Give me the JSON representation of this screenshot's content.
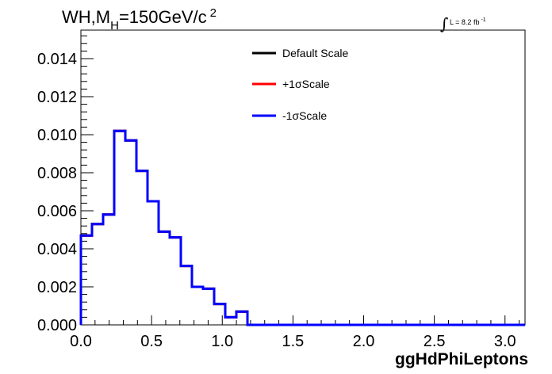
{
  "chart_data": {
    "type": "line",
    "style": "step-histogram",
    "title": {
      "main": "WH,M",
      "sub": "H",
      "rest": "=150GeV/c",
      "sup": "2"
    },
    "lumi": {
      "integral": "∫",
      "text": "L = 8.2 fb",
      "sup": "-1"
    },
    "xlabel": "ggHdPhiLeptons",
    "ylabel": "",
    "xlim": [
      0,
      3.1416
    ],
    "ylim": [
      0,
      0.0155
    ],
    "xticks": [
      0.0,
      0.5,
      1.0,
      1.5,
      2.0,
      2.5,
      3.0
    ],
    "xtick_labels": [
      "0.0",
      "0.5",
      "1.0",
      "1.5",
      "2.0",
      "2.5",
      "3.0"
    ],
    "yticks": [
      0.0,
      0.002,
      0.004,
      0.006,
      0.008,
      0.01,
      0.012,
      0.014
    ],
    "ytick_labels": [
      "0.000",
      "0.002",
      "0.004",
      "0.006",
      "0.008",
      "0.010",
      "0.012",
      "0.014"
    ],
    "grid": false,
    "legend_position": "top-center",
    "bin_edges": [
      0.0,
      0.0785,
      0.1571,
      0.2356,
      0.3142,
      0.3927,
      0.4712,
      0.5498,
      0.6283,
      0.7069,
      0.7854,
      0.8639,
      0.9425,
      1.021,
      1.0996,
      1.1781,
      1.2566,
      1.3352,
      1.4137,
      1.4923,
      1.5708,
      1.6493,
      1.7279,
      1.8064,
      1.885,
      1.9635,
      2.042,
      2.1206,
      2.1991,
      2.2777,
      2.3562,
      2.4347,
      2.5133,
      2.5918,
      2.6704,
      2.7489,
      2.8274,
      2.906,
      2.9845,
      3.0631,
      3.1416
    ],
    "series": [
      {
        "name": "Default Scale",
        "color": "#000000",
        "values": [
          0.0047,
          0.0053,
          0.0058,
          0.0102,
          0.0097,
          0.0081,
          0.0065,
          0.0049,
          0.0046,
          0.0031,
          0.002,
          0.0019,
          0.0011,
          0.0004,
          0.0007,
          0.0,
          0.0,
          0.0,
          0.0,
          0.0,
          0.0,
          0.0,
          0.0,
          0.0,
          0.0,
          0.0,
          0.0,
          0.0,
          0.0,
          0.0,
          0.0,
          0.0,
          0.0,
          0.0,
          0.0,
          0.0,
          0.0,
          0.0,
          0.0,
          0.0
        ]
      },
      {
        "name": "+1σScale",
        "color": "#ff0000",
        "values": [
          0.0047,
          0.0053,
          0.0058,
          0.0102,
          0.0097,
          0.0081,
          0.0065,
          0.0049,
          0.0046,
          0.0031,
          0.002,
          0.0019,
          0.0011,
          0.0004,
          0.0007,
          0.0,
          0.0,
          0.0,
          0.0,
          0.0,
          0.0,
          0.0,
          0.0,
          0.0,
          0.0,
          0.0,
          0.0,
          0.0,
          0.0,
          0.0,
          0.0,
          0.0,
          0.0,
          0.0,
          0.0,
          0.0,
          0.0,
          0.0,
          0.0,
          0.0
        ]
      },
      {
        "name": "-1σScale",
        "color": "#0000ff",
        "values": [
          0.0047,
          0.0053,
          0.0058,
          0.0102,
          0.0097,
          0.0081,
          0.0065,
          0.0049,
          0.0046,
          0.0031,
          0.002,
          0.0019,
          0.0011,
          0.0004,
          0.0007,
          0.0,
          0.0,
          0.0,
          0.0,
          0.0,
          0.0,
          0.0,
          0.0,
          0.0,
          0.0,
          0.0,
          0.0,
          0.0,
          0.0,
          0.0,
          0.0,
          0.0,
          0.0,
          0.0,
          0.0,
          0.0,
          0.0,
          0.0,
          0.0,
          0.0
        ]
      }
    ]
  }
}
